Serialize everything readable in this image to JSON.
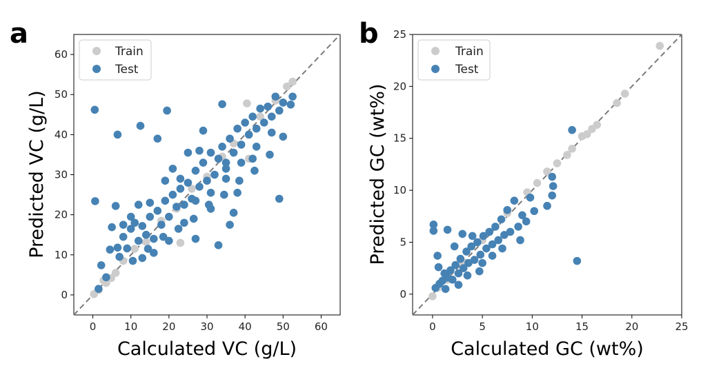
{
  "chart_data": [
    {
      "type": "scatter",
      "panel_label": "a",
      "xlabel": "Calculated VC (g/L)",
      "ylabel": "Predicted VC (g/L)",
      "xlim": [
        -5,
        65
      ],
      "ylim": [
        -5,
        65
      ],
      "xticks": [
        0,
        10,
        20,
        30,
        40,
        50,
        60
      ],
      "yticks": [
        0,
        10,
        20,
        30,
        40,
        50,
        60
      ],
      "legend": {
        "position": "upper-left",
        "entries": [
          "Train",
          "Test"
        ]
      },
      "diagonal": "y = x (dashed gray)",
      "series": [
        {
          "name": "Train",
          "color": "#cccccc",
          "points": [
            [
              0.3,
              0.2
            ],
            [
              1.5,
              1.2
            ],
            [
              2.8,
              3.6
            ],
            [
              3.5,
              3.0
            ],
            [
              4.8,
              4.2
            ],
            [
              6.0,
              5.5
            ],
            [
              8.0,
              8.5
            ],
            [
              11,
              11.5
            ],
            [
              14,
              13.2
            ],
            [
              18,
              18.5
            ],
            [
              22,
              21.5
            ],
            [
              23,
              13.0
            ],
            [
              26,
              26.5
            ],
            [
              30,
              29.5
            ],
            [
              34,
              34.5
            ],
            [
              37,
              37.8
            ],
            [
              40.5,
              47.8
            ],
            [
              41,
              34.0
            ],
            [
              44,
              44.5
            ],
            [
              48,
              48.5
            ],
            [
              51,
              52
            ],
            [
              52.5,
              53.2
            ]
          ]
        },
        {
          "name": "Test",
          "color": "#4682b4",
          "points": [
            [
              0.5,
              46.2
            ],
            [
              0.6,
              23.4
            ],
            [
              6.5,
              40.0
            ],
            [
              12.5,
              42.2
            ],
            [
              19.5,
              46.0
            ],
            [
              17,
              39.0
            ],
            [
              6,
              22.2
            ],
            [
              33,
              12.4
            ],
            [
              49,
              24.0
            ],
            [
              1.5,
              1.5
            ],
            [
              2.2,
              7.4
            ],
            [
              3.5,
              4.4
            ],
            [
              4.5,
              11.3
            ],
            [
              5,
              16.9
            ],
            [
              6.5,
              11.8
            ],
            [
              8,
              14.5
            ],
            [
              9,
              11.6
            ],
            [
              10,
              16.5
            ],
            [
              11,
              18.0
            ],
            [
              12,
              13.5
            ],
            [
              13,
              17.2
            ],
            [
              14,
              15.0
            ],
            [
              15,
              19.5
            ],
            [
              16,
              14.0
            ],
            [
              17,
              21.0
            ],
            [
              18,
              17.5
            ],
            [
              19,
              23.5
            ],
            [
              20,
              19.5
            ],
            [
              21,
              25.0
            ],
            [
              22,
              22.0
            ],
            [
              23,
              26.5
            ],
            [
              24,
              22.5
            ],
            [
              25,
              28.0
            ],
            [
              26,
              24.0
            ],
            [
              27,
              31.0
            ],
            [
              28,
              27.0
            ],
            [
              29,
              33.0
            ],
            [
              30,
              28.5
            ],
            [
              31,
              35.5
            ],
            [
              32,
              30.0
            ],
            [
              33,
              34.0
            ],
            [
              34,
              37.0
            ],
            [
              35,
              33.0
            ],
            [
              36,
              39.0
            ],
            [
              37,
              35.5
            ],
            [
              38,
              41.5
            ],
            [
              39,
              37.5
            ],
            [
              40,
              43.0
            ],
            [
              41,
              40.0
            ],
            [
              42,
              44.5
            ],
            [
              43,
              41.5
            ],
            [
              44,
              46.5
            ],
            [
              45,
              43.0
            ],
            [
              46,
              47.0
            ],
            [
              47,
              44.5
            ],
            [
              48,
              49.5
            ],
            [
              49,
              46.0
            ],
            [
              50,
              48.0
            ],
            [
              52,
              47.5
            ],
            [
              52.5,
              49.5
            ],
            [
              29,
              41.0
            ],
            [
              28,
              36.0
            ],
            [
              31,
              21.5
            ],
            [
              35,
              29.0
            ],
            [
              38,
              25.5
            ],
            [
              42,
              34.0
            ],
            [
              24,
              18.0
            ],
            [
              20,
              13.5
            ],
            [
              16,
              10.5
            ],
            [
              13,
              9.2
            ],
            [
              34,
              47.6
            ],
            [
              37,
              20.5
            ],
            [
              36,
              17.5
            ],
            [
              27,
              14.0
            ],
            [
              25,
              35.5
            ],
            [
              21,
              31.5
            ],
            [
              19,
              28.5
            ],
            [
              15,
              23.0
            ],
            [
              12,
              22.5
            ],
            [
              10,
              19.5
            ],
            [
              8,
              17.5
            ],
            [
              7,
              9.5
            ],
            [
              10.5,
              8.5
            ],
            [
              14.5,
              11.5
            ],
            [
              18.5,
              14.5
            ],
            [
              22.5,
              16.5
            ],
            [
              26.5,
              19.0
            ],
            [
              30.5,
              22.5
            ],
            [
              34.5,
              25.0
            ],
            [
              38.5,
              28.5
            ],
            [
              42.5,
              31.0
            ],
            [
              46.5,
              35.0
            ],
            [
              50,
              39.5
            ],
            [
              23,
              29.0
            ],
            [
              27,
              23.5
            ],
            [
              31,
              25.5
            ],
            [
              35,
              31.5
            ],
            [
              39,
              33.0
            ],
            [
              43,
              37.0
            ],
            [
              47,
              40.5
            ]
          ]
        }
      ]
    },
    {
      "type": "scatter",
      "panel_label": "b",
      "xlabel": "Calculated GC (wt%)",
      "ylabel": "Predicted GC (wt%)",
      "xlim": [
        -2,
        25
      ],
      "ylim": [
        -2,
        25
      ],
      "xticks": [
        0,
        5,
        10,
        15,
        20,
        25
      ],
      "yticks": [
        0,
        5,
        10,
        15,
        20,
        25
      ],
      "legend": {
        "position": "upper-left",
        "entries": [
          "Train",
          "Test"
        ]
      },
      "diagonal": "y = x (dashed gray)",
      "series": [
        {
          "name": "Train",
          "color": "#cccccc",
          "points": [
            [
              0,
              -0.2
            ],
            [
              0.5,
              0.6
            ],
            [
              1.5,
              1.4
            ],
            [
              3,
              3.1
            ],
            [
              5,
              5.2
            ],
            [
              7.5,
              7.8
            ],
            [
              9.5,
              9.8
            ],
            [
              10.5,
              10.7
            ],
            [
              11.5,
              11.8
            ],
            [
              12.5,
              12.6
            ],
            [
              13.5,
              13.4
            ],
            [
              14,
              14.0
            ],
            [
              15,
              15.2
            ],
            [
              15.5,
              15.4
            ],
            [
              16,
              15.9
            ],
            [
              16.5,
              16.3
            ],
            [
              18.5,
              18.4
            ],
            [
              19.3,
              19.3
            ],
            [
              22.8,
              23.9
            ]
          ]
        },
        {
          "name": "Test",
          "color": "#4682b4",
          "points": [
            [
              0.1,
              6.7
            ],
            [
              0.1,
              6.1
            ],
            [
              1.5,
              6.2
            ],
            [
              0.5,
              3.7
            ],
            [
              0.6,
              2.6
            ],
            [
              0.3,
              0.6
            ],
            [
              0.7,
              1.0
            ],
            [
              1,
              1.3
            ],
            [
              1.2,
              2.0
            ],
            [
              1.5,
              1.6
            ],
            [
              1.8,
              2.3
            ],
            [
              2,
              1.4
            ],
            [
              2.3,
              2.8
            ],
            [
              2.6,
              2.0
            ],
            [
              2.8,
              3.4
            ],
            [
              3.1,
              2.5
            ],
            [
              3.4,
              4.1
            ],
            [
              3.6,
              3.0
            ],
            [
              3.9,
              4.6
            ],
            [
              4.2,
              3.3
            ],
            [
              4.5,
              5.0
            ],
            [
              4.8,
              3.8
            ],
            [
              5.1,
              5.6
            ],
            [
              5.4,
              4.4
            ],
            [
              5.7,
              6.0
            ],
            [
              6,
              4.8
            ],
            [
              6.3,
              6.5
            ],
            [
              6.6,
              5.2
            ],
            [
              6.9,
              7.2
            ],
            [
              7.2,
              5.7
            ],
            [
              7.5,
              8.1
            ],
            [
              7.8,
              6.0
            ],
            [
              8.2,
              9.0
            ],
            [
              8.6,
              6.5
            ],
            [
              9,
              7.6
            ],
            [
              9.4,
              7.0
            ],
            [
              9.8,
              9.3
            ],
            [
              10.2,
              8.0
            ],
            [
              11.5,
              8.5
            ],
            [
              12,
              9.5
            ],
            [
              12.1,
              10.4
            ],
            [
              12.0,
              11.3
            ],
            [
              14.0,
              15.8
            ],
            [
              14.5,
              3.2
            ],
            [
              8.8,
              5.2
            ],
            [
              3.0,
              5.8
            ],
            [
              2.2,
              4.6
            ],
            [
              4.0,
              5.6
            ],
            [
              5.0,
              3.0
            ],
            [
              6.0,
              3.7
            ],
            [
              3.5,
              1.8
            ],
            [
              1.3,
              0.5
            ],
            [
              2.6,
              0.9
            ],
            [
              4.7,
              2.2
            ],
            [
              7.0,
              4.4
            ]
          ]
        }
      ]
    }
  ]
}
